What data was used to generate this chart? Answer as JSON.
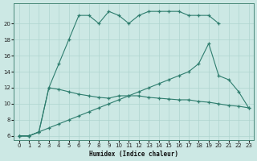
{
  "xlabel": "Humidex (Indice chaleur)",
  "color": "#2e7d6e",
  "bg_color": "#cce8e4",
  "grid_color": "#afd4cf",
  "xlim": [
    -0.5,
    23.5
  ],
  "ylim": [
    5.5,
    22.5
  ],
  "yticks": [
    6,
    8,
    10,
    12,
    14,
    16,
    18,
    20
  ],
  "xticks": [
    0,
    1,
    2,
    3,
    4,
    5,
    6,
    7,
    8,
    9,
    10,
    11,
    12,
    13,
    14,
    15,
    16,
    17,
    18,
    19,
    20,
    21,
    22,
    23
  ],
  "curve_a_x": [
    0,
    1,
    2,
    3,
    4,
    5,
    6,
    7,
    8,
    9,
    10,
    11,
    12,
    13,
    14,
    15,
    16,
    17,
    18,
    19,
    20
  ],
  "curve_a_y": [
    6,
    6,
    6.5,
    12,
    15,
    18,
    21,
    21,
    20,
    21.5,
    21,
    20,
    21,
    21.5,
    21.5,
    21.5,
    21.5,
    21,
    21,
    21,
    20
  ],
  "curve_b_x": [
    0,
    1,
    2,
    3,
    4,
    5,
    6,
    7,
    8,
    9,
    10,
    11,
    12,
    13,
    14,
    15,
    16,
    17,
    18,
    19,
    20,
    21,
    22,
    23
  ],
  "curve_b_y": [
    6,
    6,
    6.5,
    7,
    7.5,
    8,
    8.5,
    9,
    9.5,
    10,
    10.5,
    11,
    11.5,
    12,
    12.5,
    13,
    13.5,
    14,
    15,
    17.5,
    13.5,
    13,
    11.5,
    9.5
  ],
  "curve_c_x": [
    0,
    1,
    2,
    3,
    4,
    5,
    6,
    7,
    8,
    9,
    10,
    11,
    12,
    13,
    14,
    15,
    16,
    17,
    18,
    19,
    20,
    21,
    22,
    23
  ],
  "curve_c_y": [
    6,
    6,
    6.5,
    12,
    11.8,
    11.5,
    11.2,
    11,
    10.8,
    10.7,
    11,
    11,
    11,
    10.8,
    10.7,
    10.6,
    10.5,
    10.5,
    10.3,
    10.2,
    10,
    9.8,
    9.7,
    9.5
  ]
}
